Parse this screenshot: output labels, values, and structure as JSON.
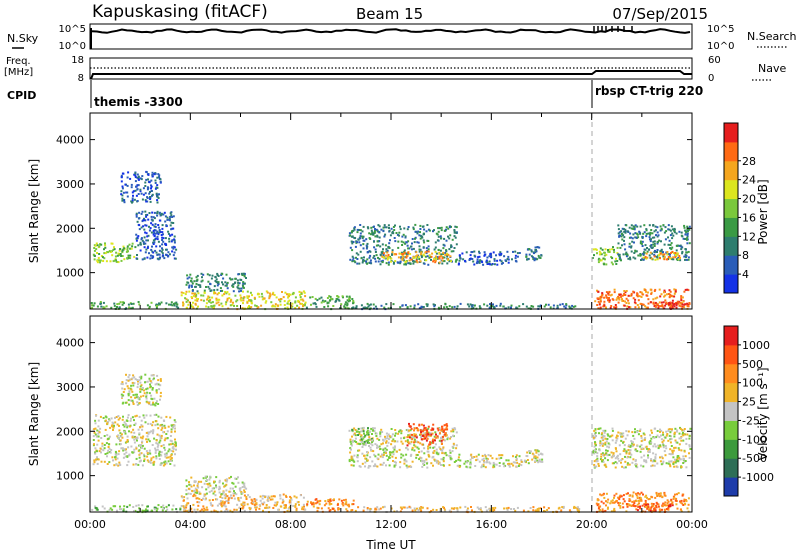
{
  "header": {
    "radar": "Kapuskasing (fitACF)",
    "beam": "Beam 15",
    "date": "07/Sep/2015"
  },
  "summary_panels": {
    "nsky": {
      "label": "N.Sky",
      "ticks": [
        "10^5",
        "10^0"
      ]
    },
    "nsearch": {
      "label": "N.Search",
      "ticks": [
        "10^5",
        "10^0"
      ]
    },
    "freq": {
      "label_top": "Freq.",
      "label_unit": "[MHz]",
      "ticks": [
        "18",
        "8"
      ]
    },
    "nave": {
      "label": "Nave",
      "ticks": [
        "60",
        "0"
      ]
    },
    "cpid": {
      "label": "CPID",
      "segments": [
        {
          "start": "00:00",
          "end": "20:00",
          "label": "themis -3300"
        },
        {
          "start": "20:00",
          "end": "24:00",
          "label": "rbsp CT-trig 220"
        }
      ]
    }
  },
  "chart_data": [
    {
      "type": "heatmap",
      "name": "power",
      "ylabel": "Slant Range [km]",
      "xlabel": "",
      "ylim": [
        180,
        4600
      ],
      "yticks": [
        "1000",
        "2000",
        "3000",
        "4000"
      ],
      "colorbar": {
        "label": "Power [dB]",
        "range": [
          0,
          32
        ],
        "ticks": [
          "4",
          "8",
          "12",
          "16",
          "20",
          "24",
          "28"
        ],
        "colors": [
          "#1432e6",
          "#2a5db8",
          "#2e7d6e",
          "#3a9a44",
          "#7ac83c",
          "#dce61e",
          "#f5a61e",
          "#ff6a14",
          "#e61e1e"
        ]
      },
      "blobs": [
        {
          "t": [
            0.1,
            1.8
          ],
          "r": [
            1250,
            1700
          ],
          "c": 4
        },
        {
          "t": [
            1.8,
            3.4
          ],
          "r": [
            1300,
            2400
          ],
          "c": 1
        },
        {
          "t": [
            1.2,
            2.8
          ],
          "r": [
            2600,
            3300
          ],
          "c": 1
        },
        {
          "t": [
            0.0,
            3.6
          ],
          "r": [
            200,
            360
          ],
          "c": 3
        },
        {
          "t": [
            3.6,
            8.6
          ],
          "r": [
            200,
            600
          ],
          "c": 5
        },
        {
          "t": [
            8.6,
            10.5
          ],
          "r": [
            200,
            500
          ],
          "c": 3
        },
        {
          "t": [
            3.8,
            6.2
          ],
          "r": [
            600,
            1000
          ],
          "c": 2
        },
        {
          "t": [
            10.3,
            14.6
          ],
          "r": [
            1200,
            2100
          ],
          "c": 2
        },
        {
          "t": [
            11.6,
            14.4
          ],
          "r": [
            1250,
            1500
          ],
          "c": 6
        },
        {
          "t": [
            10.5,
            19.5
          ],
          "r": [
            200,
            320
          ],
          "c": 2
        },
        {
          "t": [
            14.6,
            17.2
          ],
          "r": [
            1200,
            1500
          ],
          "c": 1
        },
        {
          "t": [
            17.3,
            18.0
          ],
          "r": [
            1300,
            1600
          ],
          "c": 2
        },
        {
          "t": [
            20.0,
            21.0
          ],
          "r": [
            1200,
            1600
          ],
          "c": 4
        },
        {
          "t": [
            21.0,
            23.9
          ],
          "r": [
            1300,
            2100
          ],
          "c": 2
        },
        {
          "t": [
            22.0,
            23.5
          ],
          "r": [
            1300,
            1500
          ],
          "c": 6
        },
        {
          "t": [
            20.1,
            23.9
          ],
          "r": [
            200,
            650
          ],
          "c": 7
        },
        {
          "t": [
            22.4,
            23.9
          ],
          "r": [
            200,
            350
          ],
          "c": 8
        }
      ]
    },
    {
      "type": "heatmap",
      "name": "velocity",
      "xlabel": "Time UT",
      "ylabel": "Slant Range [km]",
      "ylim": [
        180,
        4600
      ],
      "yticks": [
        "1000",
        "2000",
        "3000",
        "4000"
      ],
      "xticks": [
        "00:00",
        "04:00",
        "08:00",
        "12:00",
        "16:00",
        "20:00",
        "00:00"
      ],
      "colorbar": {
        "label": "Velocity [m s⁻¹]",
        "ticks": [
          "1000",
          "500",
          "100",
          "25",
          "-25",
          "-100",
          "-500",
          "-1000"
        ],
        "colors": [
          "#1e3caa",
          "#2e6e56",
          "#3c9a3c",
          "#78cc3c",
          "#c4c4c4",
          "#f0b428",
          "#ff8c1e",
          "#ff5514",
          "#e61e1e"
        ]
      },
      "blobs": [
        {
          "t": [
            0.1,
            3.4
          ],
          "r": [
            1250,
            2400
          ],
          "c": 4
        },
        {
          "t": [
            1.2,
            2.8
          ],
          "r": [
            2600,
            3300
          ],
          "c": 4
        },
        {
          "t": [
            0.0,
            3.6
          ],
          "r": [
            200,
            360
          ],
          "c": 3
        },
        {
          "t": [
            3.6,
            8.6
          ],
          "r": [
            200,
            600
          ],
          "c": 5
        },
        {
          "t": [
            8.6,
            10.5
          ],
          "r": [
            200,
            500
          ],
          "c": 6
        },
        {
          "t": [
            3.8,
            6.2
          ],
          "r": [
            600,
            1000
          ],
          "c": 4
        },
        {
          "t": [
            10.3,
            14.6
          ],
          "r": [
            1200,
            2100
          ],
          "c": 4
        },
        {
          "t": [
            10.4,
            11.4
          ],
          "r": [
            1700,
            2100
          ],
          "c": 3
        },
        {
          "t": [
            12.6,
            14.2
          ],
          "r": [
            1700,
            2200
          ],
          "c": 7
        },
        {
          "t": [
            10.5,
            19.5
          ],
          "r": [
            200,
            320
          ],
          "c": 5
        },
        {
          "t": [
            14.6,
            17.2
          ],
          "r": [
            1200,
            1500
          ],
          "c": 4
        },
        {
          "t": [
            17.3,
            18.0
          ],
          "r": [
            1300,
            1600
          ],
          "c": 4
        },
        {
          "t": [
            20.0,
            23.9
          ],
          "r": [
            1200,
            2100
          ],
          "c": 4
        },
        {
          "t": [
            20.1,
            23.9
          ],
          "r": [
            200,
            650
          ],
          "c": 6
        },
        {
          "t": [
            21.6,
            23.2
          ],
          "r": [
            200,
            400
          ],
          "c": 7
        }
      ]
    }
  ]
}
